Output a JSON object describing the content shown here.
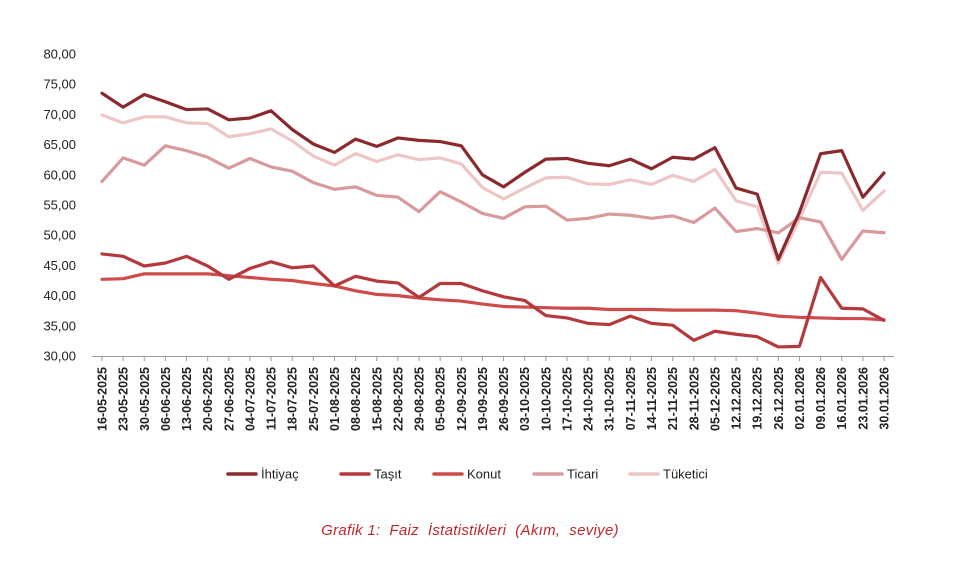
{
  "caption": "Grafik 1:  Faiz  İstatistikleri  (Akım,  seviye)",
  "chart_data": {
    "type": "line",
    "title": "",
    "xlabel": "",
    "ylabel": "",
    "ylim": [
      30,
      80
    ],
    "yticks": [
      "30,00",
      "35,00",
      "40,00",
      "45,00",
      "50,00",
      "55,00",
      "60,00",
      "65,00",
      "70,00",
      "75,00",
      "80,00"
    ],
    "grid": false,
    "legend_position": "bottom",
    "x": [
      "16-05-2025",
      "23-05-2025",
      "30-05-2025",
      "06-06-2025",
      "13-06-2025",
      "20-06-2025",
      "27-06-2025",
      "04-07-2025",
      "11-07-2025",
      "18-07-2025",
      "25-07-2025",
      "01-08-2025",
      "08-08-2025",
      "15-08-2025",
      "22-08-2025",
      "29-08-2025",
      "05-09-2025",
      "12-09-2025",
      "19-09-2025",
      "26-09-2025",
      "03-10-2025",
      "10-10-2025",
      "17-10-2025",
      "24-10-2025",
      "31-10-2025",
      "07-11-2025",
      "14-11-2025",
      "21-11-2025",
      "28-11-2025",
      "05-12-2025",
      "12.12.2025",
      "19.12.2025",
      "26.12.2025",
      "02.01.2026",
      "09.01.2026",
      "16.01.2026",
      "23.01.2026",
      "30.01.2026"
    ],
    "series": [
      {
        "name": "İhtiyaç",
        "color": "#8b2a2e",
        "values": [
          73.5,
          71.2,
          73.3,
          72.1,
          70.8,
          70.9,
          69.1,
          69.4,
          70.6,
          67.5,
          65.1,
          63.7,
          65.9,
          64.7,
          66.1,
          65.7,
          65.5,
          64.8,
          60.0,
          58.0,
          60.4,
          62.6,
          62.7,
          61.9,
          61.5,
          62.6,
          61.0,
          62.9,
          62.6,
          64.5,
          57.8,
          56.8,
          46.0,
          53.8,
          63.5,
          64.0,
          56.3,
          60.3
        ]
      },
      {
        "name": "Taşıt",
        "color": "#b5383c",
        "values": [
          46.9,
          46.5,
          44.9,
          45.4,
          46.5,
          44.9,
          42.7,
          44.5,
          45.6,
          44.6,
          44.9,
          41.6,
          43.2,
          42.4,
          42.1,
          39.7,
          42.0,
          42.0,
          40.8,
          39.8,
          39.2,
          36.7,
          36.3,
          35.4,
          35.2,
          36.6,
          35.4,
          35.1,
          32.6,
          34.1,
          33.6,
          33.2,
          31.5,
          31.6,
          43.0,
          37.9,
          37.8,
          35.9
        ]
      },
      {
        "name": "Konut",
        "color": "#cf4b4b",
        "values": [
          42.7,
          42.8,
          43.6,
          43.6,
          43.6,
          43.6,
          43.3,
          43.0,
          42.7,
          42.5,
          42.0,
          41.6,
          40.8,
          40.2,
          40.0,
          39.6,
          39.3,
          39.1,
          38.6,
          38.2,
          38.1,
          38.0,
          37.9,
          37.9,
          37.7,
          37.7,
          37.7,
          37.6,
          37.6,
          37.6,
          37.5,
          37.1,
          36.6,
          36.4,
          36.3,
          36.2,
          36.2,
          36.0
        ]
      },
      {
        "name": "Ticari",
        "color": "#d89a9c",
        "values": [
          58.9,
          62.8,
          61.6,
          64.8,
          64.0,
          62.9,
          61.1,
          62.7,
          61.3,
          60.6,
          58.7,
          57.6,
          58.0,
          56.6,
          56.3,
          53.9,
          57.2,
          55.5,
          53.6,
          52.8,
          54.7,
          54.8,
          52.5,
          52.8,
          53.5,
          53.3,
          52.8,
          53.2,
          52.1,
          54.5,
          50.6,
          51.1,
          50.4,
          52.9,
          52.2,
          46.0,
          50.7,
          50.4
        ]
      },
      {
        "name": "Tüketici",
        "color": "#eec6c6",
        "values": [
          69.9,
          68.6,
          69.6,
          69.6,
          68.6,
          68.5,
          66.3,
          66.8,
          67.6,
          65.6,
          63.1,
          61.6,
          63.5,
          62.2,
          63.3,
          62.5,
          62.8,
          61.8,
          57.9,
          56.0,
          57.8,
          59.5,
          59.6,
          58.5,
          58.4,
          59.2,
          58.4,
          59.9,
          58.9,
          60.9,
          55.7,
          54.7,
          45.4,
          52.7,
          60.4,
          60.3,
          54.1,
          57.3
        ]
      }
    ]
  }
}
